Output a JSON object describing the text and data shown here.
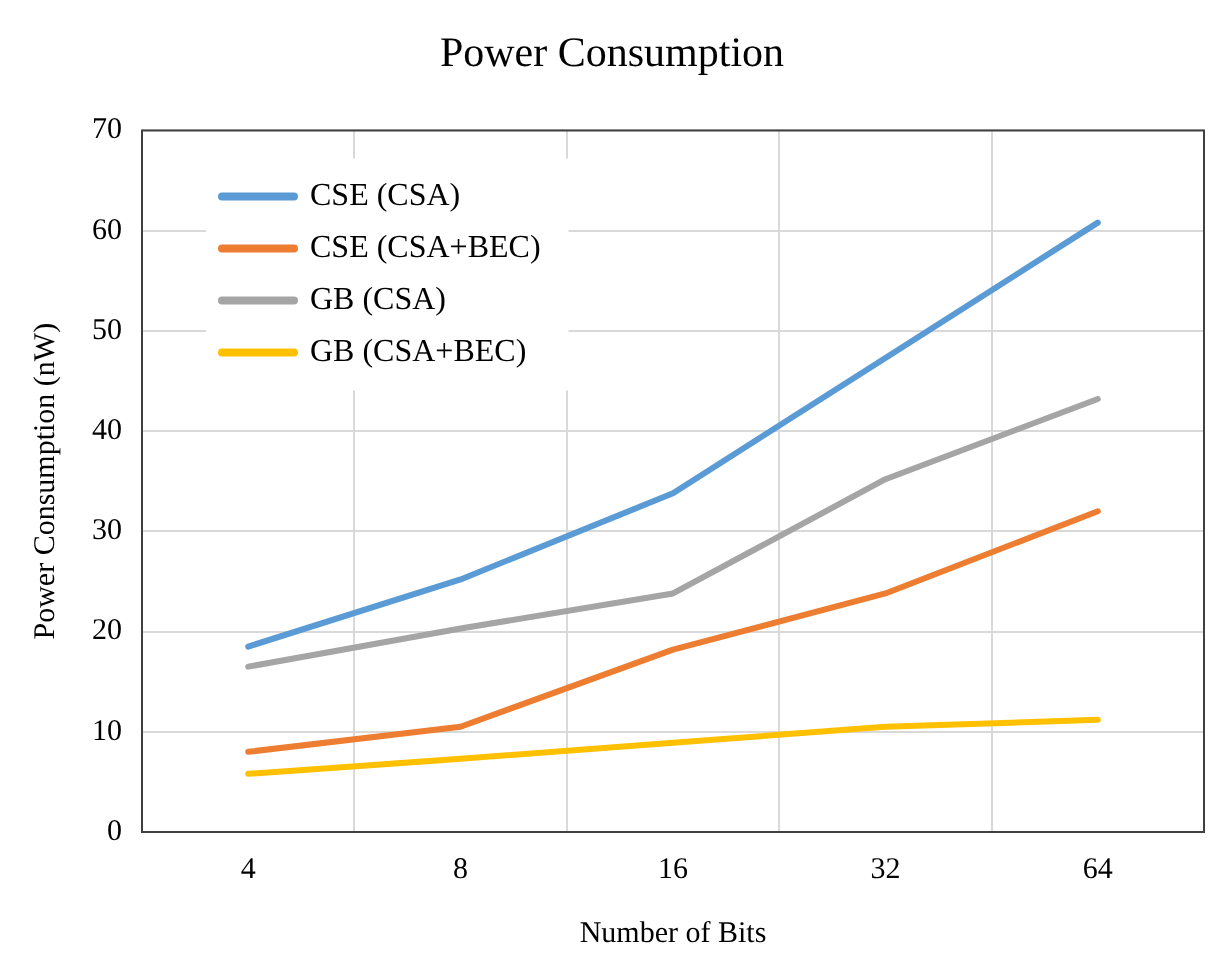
{
  "chart_data": {
    "type": "line",
    "title": "Power Consumption",
    "xlabel": "Number of Bits",
    "ylabel": "Power Consumption (nW)",
    "categories": [
      "4",
      "8",
      "16",
      "32",
      "64"
    ],
    "series": [
      {
        "name": "CSE (CSA)",
        "color": "#5b9bd5",
        "values": [
          18.5,
          25.2,
          33.8,
          47.3,
          60.8
        ]
      },
      {
        "name": "CSE (CSA+BEC)",
        "color": "#ed7d31",
        "values": [
          8,
          10.5,
          18.2,
          23.8,
          32
        ]
      },
      {
        "name": "GB (CSA)",
        "color": "#a5a5a5",
        "values": [
          16.5,
          20.3,
          23.8,
          35.2,
          43.2
        ]
      },
      {
        "name": "GB (CSA+BEC)",
        "color": "#ffc000",
        "values": [
          5.8,
          7.3,
          8.9,
          10.5,
          11.2
        ]
      }
    ],
    "ylim": [
      0,
      70
    ],
    "yticks": [
      0,
      10,
      20,
      30,
      40,
      50,
      60,
      70
    ],
    "grid": true,
    "legend": "top left",
    "marker": "none",
    "line_style": "solid"
  }
}
